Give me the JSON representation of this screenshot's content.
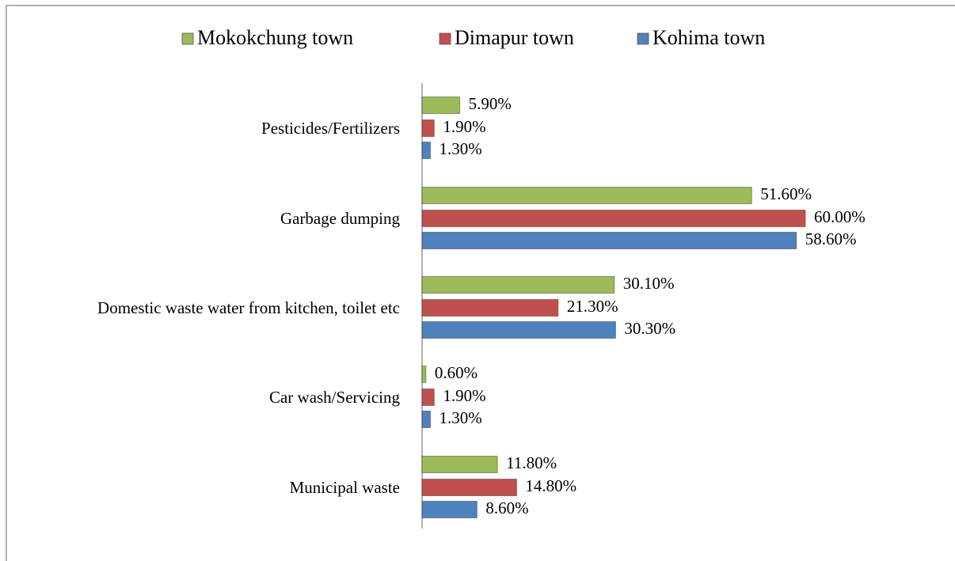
{
  "chart_data": {
    "type": "bar",
    "orientation": "horizontal",
    "categories": [
      "Pesticides/Fertilizers",
      "Garbage dumping",
      "Domestic waste water from kitchen, toilet etc",
      "Car wash/Servicing",
      "Municipal waste"
    ],
    "series": [
      {
        "name": "Mokokchung town",
        "color": "#9bbb59",
        "values": [
          5.9,
          51.6,
          30.1,
          0.6,
          11.8
        ],
        "value_labels": [
          "5.90%",
          "51.60%",
          "30.10%",
          "0.60%",
          "11.80%"
        ]
      },
      {
        "name": "Dimapur town",
        "color": "#c0504d",
        "values": [
          1.9,
          60.0,
          21.3,
          1.9,
          14.8
        ],
        "value_labels": [
          "1.90%",
          "60.00%",
          "21.30%",
          "1.90%",
          "14.80%"
        ]
      },
      {
        "name": "Kohima town",
        "color": "#4f81bd",
        "values": [
          1.3,
          58.6,
          30.3,
          1.3,
          8.6
        ],
        "value_labels": [
          "1.30%",
          "58.60%",
          "30.30%",
          "1.30%",
          "8.60%"
        ]
      }
    ],
    "legend": "top"
  }
}
